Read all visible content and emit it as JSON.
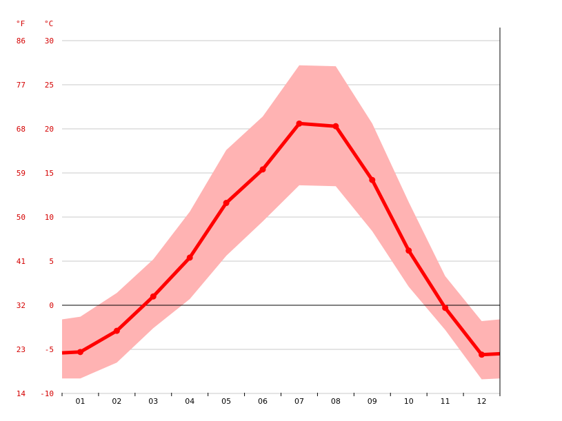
{
  "chart_data": {
    "type": "line",
    "title": "",
    "units": {
      "left": "°F",
      "right": "°C"
    },
    "categories": [
      "01",
      "02",
      "03",
      "04",
      "05",
      "06",
      "07",
      "08",
      "09",
      "10",
      "11",
      "12"
    ],
    "series": [
      {
        "values": [
          -5.3,
          -2.9,
          1.0,
          5.4,
          11.6,
          15.4,
          20.6,
          20.3,
          14.2,
          6.2,
          -0.3,
          -5.6
        ],
        "band_high": [
          -1.3,
          1.4,
          5.2,
          10.6,
          17.6,
          21.4,
          27.2,
          27.1,
          20.6,
          11.7,
          3.3,
          -1.8
        ],
        "band_low": [
          -8.3,
          -6.5,
          -2.6,
          0.7,
          5.6,
          9.5,
          13.6,
          13.5,
          8.4,
          2.1,
          -2.8,
          -8.4
        ]
      }
    ],
    "edge_values": {
      "start": -5.4,
      "end": -5.5
    },
    "edge_band_high": {
      "start": -1.6,
      "end": -1.6
    },
    "edge_band_low": {
      "start": -8.3,
      "end": -8.3
    },
    "ylim": [
      -10,
      30
    ],
    "y_ticks_c": [
      "-10",
      "-5",
      "0",
      "5",
      "10",
      "15",
      "20",
      "25",
      "30"
    ],
    "y_ticks_f": [
      "14",
      "23",
      "32",
      "41",
      "50",
      "59",
      "68",
      "77",
      "86"
    ],
    "grid": true,
    "colors": {
      "line": "#ff0000",
      "band": "#ffb3b3",
      "tick_text": "#d40000",
      "grid": "#c8c8c8",
      "zero_line": "#000000"
    }
  }
}
